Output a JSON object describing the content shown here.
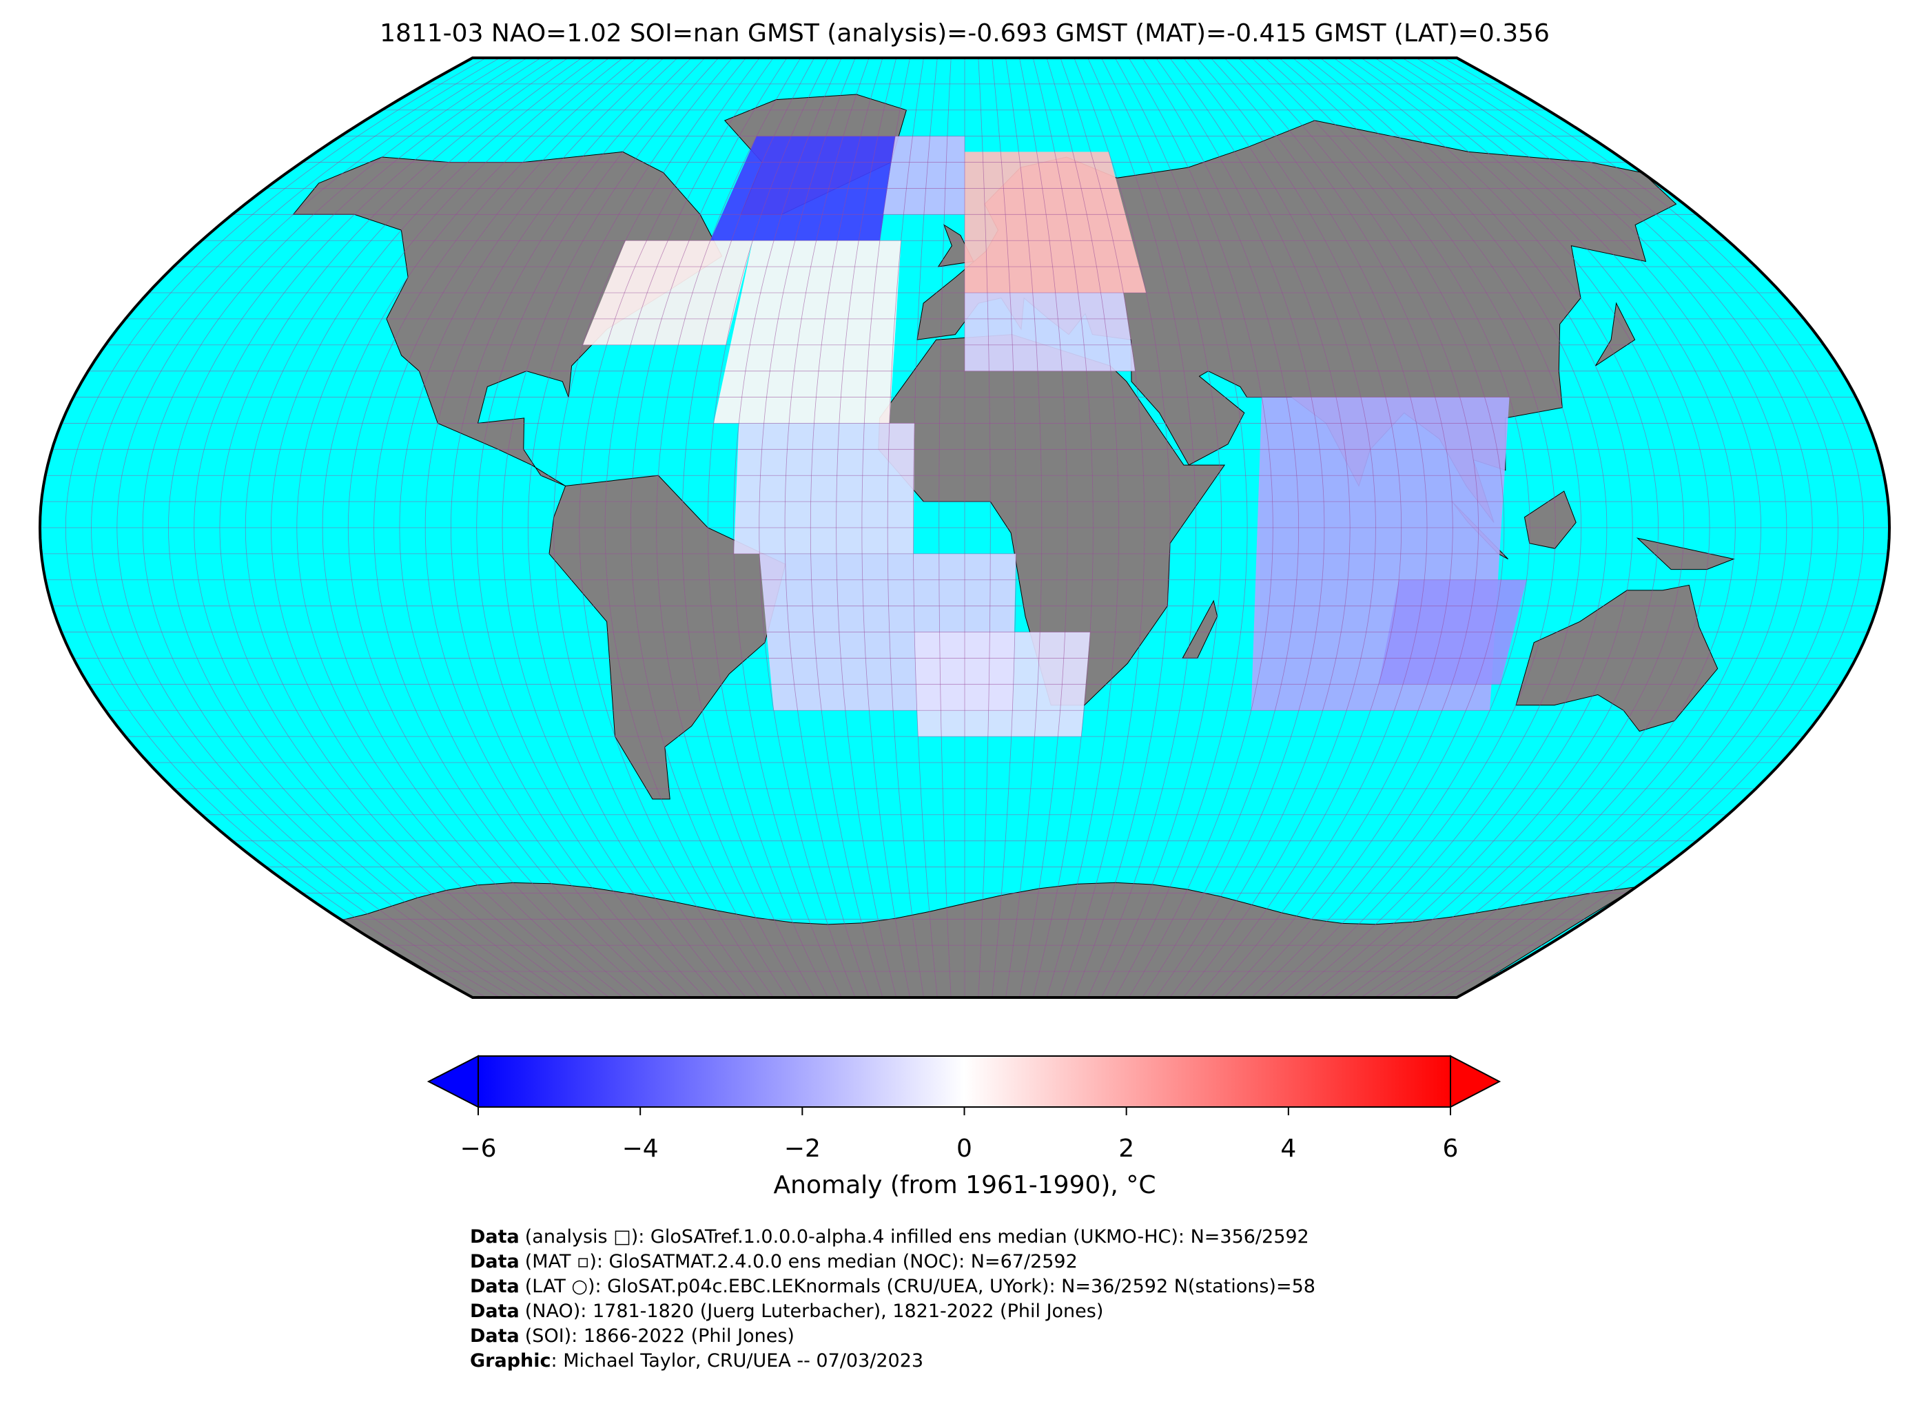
{
  "map": {
    "title": "1811-03 NAO=1.02 SOI=nan GMST (analysis)=-0.693 GMST (MAT)=-0.415 GMST (LAT)=0.356",
    "sea_color": "#00ffff",
    "land_color": "#808080",
    "cells": [
      {
        "lon": [
          -60,
          -20
        ],
        "lat": [
          55,
          75
        ],
        "value": -4.5
      },
      {
        "lon": [
          -20,
          0
        ],
        "lat": [
          60,
          75
        ],
        "value": -1.5
      },
      {
        "lon": [
          -80,
          -50
        ],
        "lat": [
          35,
          55
        ],
        "value": 0.3
      },
      {
        "lon": [
          -50,
          -15
        ],
        "lat": [
          20,
          55
        ],
        "value": 0.2
      },
      {
        "lon": [
          0,
          40
        ],
        "lat": [
          45,
          72
        ],
        "value": 1.5
      },
      {
        "lon": [
          0,
          35
        ],
        "lat": [
          30,
          45
        ],
        "value": -1
      },
      {
        "lon": [
          -45,
          -10
        ],
        "lat": [
          -5,
          20
        ],
        "value": -0.8
      },
      {
        "lon": [
          -40,
          10
        ],
        "lat": [
          -35,
          -5
        ],
        "value": -1
      },
      {
        "lon": [
          -10,
          25
        ],
        "lat": [
          -40,
          -20
        ],
        "value": -0.7
      },
      {
        "lon": [
          60,
          110
        ],
        "lat": [
          -35,
          25
        ],
        "value": -2
      },
      {
        "lon": [
          85,
          110
        ],
        "lat": [
          -30,
          -10
        ],
        "value": -2.5
      }
    ]
  },
  "colorbar": {
    "label": "Anomaly (from 1961-1990), °C",
    "lim": [
      -6,
      6
    ],
    "ticks": [
      {
        "value": -6,
        "label": "−6"
      },
      {
        "value": -4,
        "label": "−4"
      },
      {
        "value": -2,
        "label": "−2"
      },
      0,
      2,
      4,
      6
    ],
    "colors": [
      "#0000ff",
      "#ffffff",
      "#ff0000"
    ]
  },
  "footer": [
    {
      "label": "Data",
      "text": "(analysis □): GloSATref.1.0.0.0-alpha.4 infilled ens median (UKMO-HC): N=356/2592"
    },
    {
      "label": "Data",
      "text": "(MAT ▫): GloSATMAT.2.4.0.0 ens median (NOC): N=67/2592"
    },
    {
      "label": "Data",
      "text": "(LAT ○): GloSAT.p04c.EBC.LEKnormals (CRU/UEA, UYork): N=36/2592 N(stations)=58"
    },
    {
      "label": "Data",
      "text": "(NAO): 1781-1820 (Juerg Luterbacher), 1821-2022 (Phil Jones)"
    },
    {
      "label": "Data",
      "text": "(SOI): 1866-2022 (Phil Jones)"
    },
    {
      "label": "Graphic",
      "text": ": Michael Taylor, CRU/UEA -- 07/03/2023"
    }
  ]
}
